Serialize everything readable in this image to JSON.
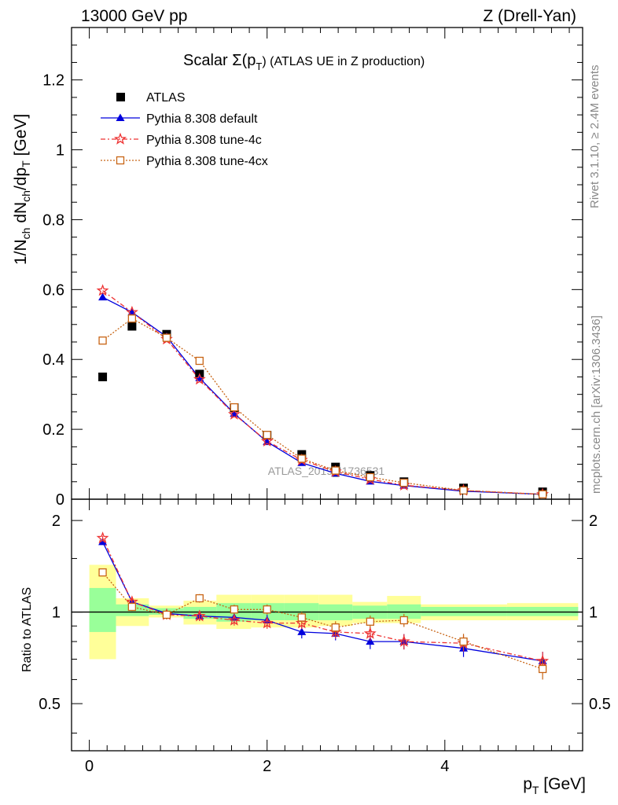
{
  "header": {
    "left": "13000 GeV pp",
    "right": "Z (Drell-Yan)"
  },
  "side_labels": {
    "rivet": "Rivet 3.1.10, ≥ 2.4M events",
    "mcplots": "mcplots.cern.ch [arXiv:1306.3436]"
  },
  "colors": {
    "data": "#000000",
    "default": "#0000dd",
    "tune4c": "#ee3333",
    "tune4cx": "#c86414",
    "band_inner": "#99ff99",
    "band_outer": "#ffff99"
  },
  "chart_data": [
    {
      "type": "scatter",
      "title": "Scalar Σ(p_T) (ATLAS UE in Z production)",
      "title_main": "Scalar Σ(p",
      "title_sub": "T",
      "title_tail": ") (ATLAS UE in Z production)",
      "ylabel": "1/N_ch dN_ch/dp_T [GeV]",
      "watermark": "ATLAS_2019_I1736531",
      "xlim": [
        -0.2,
        5.55
      ],
      "ylim": [
        0,
        1.35
      ],
      "y_ticks": [
        0,
        0.2,
        0.4,
        0.6,
        0.8,
        1,
        1.2
      ],
      "y_tick_labels": [
        "0",
        "0.2",
        "0.4",
        "0.6",
        "0.8",
        "1",
        "1.2"
      ],
      "x": [
        0.15,
        0.48,
        0.87,
        1.24,
        1.63,
        2.0,
        2.39,
        2.77,
        3.16,
        3.54,
        4.21,
        5.1
      ],
      "series": [
        {
          "name": "ATLAS",
          "marker": "square",
          "values": [
            0.35,
            0.495,
            0.472,
            0.358,
            0.262,
            0.183,
            0.128,
            0.092,
            0.068,
            0.05,
            0.032,
            0.021
          ]
        },
        {
          "name": "Pythia 8.308 default",
          "marker": "triangle",
          "values": [
            0.578,
            0.535,
            0.465,
            0.347,
            0.245,
            0.164,
            0.104,
            0.074,
            0.051,
            0.039,
            0.023,
            0.014
          ]
        },
        {
          "name": "Pythia 8.308 tune-4c",
          "marker": "star",
          "values": [
            0.597,
            0.535,
            0.458,
            0.343,
            0.243,
            0.166,
            0.112,
            0.079,
            0.057,
            0.04,
            0.025,
            0.014
          ]
        },
        {
          "name": "Pythia 8.308 tune-4cx",
          "marker": "open-square",
          "values": [
            0.454,
            0.517,
            0.462,
            0.396,
            0.263,
            0.184,
            0.116,
            0.082,
            0.063,
            0.047,
            0.025,
            0.014
          ]
        }
      ]
    },
    {
      "type": "scatter",
      "ylabel": "Ratio to ATLAS",
      "xlabel": "p_T [GeV]",
      "xlabel_main": "p",
      "xlabel_sub": "T",
      "xlabel_tail": " [GeV]",
      "xlim": [
        -0.2,
        5.55
      ],
      "ylim": [
        0.35,
        2.35
      ],
      "y_scale": "log",
      "y_tick_labels": [
        "0.5",
        "1",
        "2"
      ],
      "y_tick_values": [
        0.5,
        1,
        2
      ],
      "x_tick_labels": [
        "0",
        "2",
        "4"
      ],
      "x_tick_values": [
        0,
        2,
        4
      ],
      "reference_line": 1,
      "bins": [
        [
          0,
          0.3
        ],
        [
          0.3,
          0.67
        ],
        [
          0.67,
          1.06
        ],
        [
          1.06,
          1.43
        ],
        [
          1.43,
          1.82
        ],
        [
          1.82,
          2.19
        ],
        [
          2.19,
          2.58
        ],
        [
          2.58,
          2.96
        ],
        [
          2.96,
          3.35
        ],
        [
          3.35,
          3.73
        ],
        [
          3.73,
          4.7
        ],
        [
          4.7,
          5.5
        ]
      ],
      "band_inner": [
        [
          0.86,
          1.2
        ],
        [
          0.97,
          1.06
        ],
        [
          0.98,
          1.03
        ],
        [
          0.95,
          1.04
        ],
        [
          0.93,
          1.07
        ],
        [
          0.94,
          1.07
        ],
        [
          0.94,
          1.07
        ],
        [
          0.94,
          1.06
        ],
        [
          0.95,
          1.05
        ],
        [
          0.95,
          1.06
        ],
        [
          0.97,
          1.04
        ],
        [
          0.97,
          1.04
        ]
      ],
      "band_outer": [
        [
          0.7,
          1.43
        ],
        [
          0.9,
          1.11
        ],
        [
          0.96,
          1.05
        ],
        [
          0.91,
          1.09
        ],
        [
          0.88,
          1.14
        ],
        [
          0.89,
          1.14
        ],
        [
          0.89,
          1.14
        ],
        [
          0.9,
          1.14
        ],
        [
          0.92,
          1.08
        ],
        [
          0.92,
          1.13
        ],
        [
          0.94,
          1.06
        ],
        [
          0.94,
          1.07
        ]
      ],
      "x": [
        0.15,
        0.48,
        0.87,
        1.24,
        1.63,
        2.0,
        2.39,
        2.77,
        3.16,
        3.54,
        4.21,
        5.1
      ],
      "series": [
        {
          "name": "Pythia 8.308 default",
          "marker": "triangle",
          "values": [
            1.7,
            1.08,
            0.99,
            0.97,
            0.96,
            0.94,
            0.86,
            0.85,
            0.8,
            0.8,
            0.76,
            0.69
          ]
        },
        {
          "name": "Pythia 8.308 tune-4c",
          "marker": "star",
          "values": [
            1.75,
            1.08,
            0.98,
            0.97,
            0.94,
            0.92,
            0.92,
            0.86,
            0.85,
            0.8,
            0.79,
            0.69
          ]
        },
        {
          "name": "Pythia 8.308 tune-4cx",
          "marker": "open-square",
          "values": [
            1.35,
            1.04,
            0.98,
            1.11,
            1.02,
            1.02,
            0.96,
            0.89,
            0.93,
            0.94,
            0.8,
            0.65
          ]
        }
      ]
    }
  ]
}
